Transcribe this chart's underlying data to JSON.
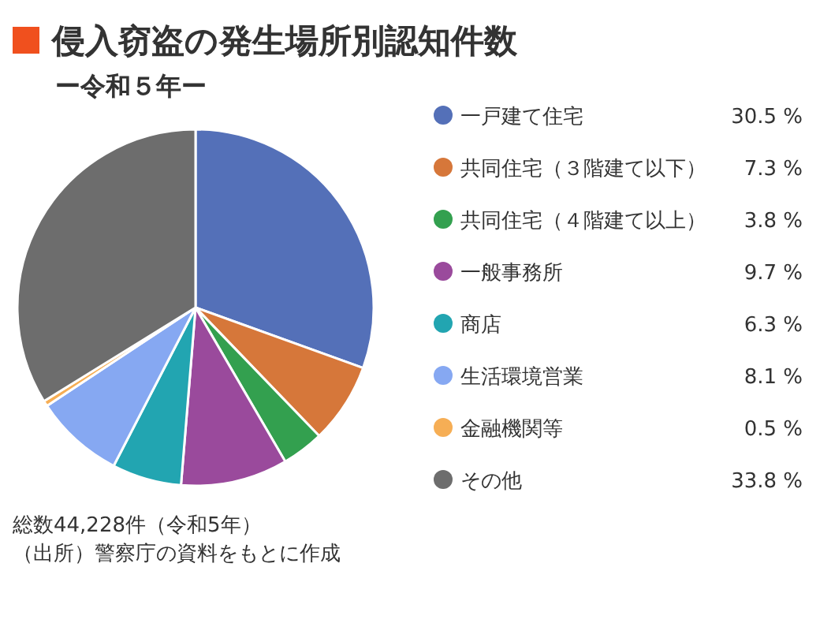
{
  "chart_data": {
    "type": "pie",
    "title": "侵入窃盗の発生場所別認知件数",
    "subtitle": "ー令和５年ー",
    "categories": [
      "一戸建て住宅",
      "共同住宅（３階建て以下）",
      "共同住宅（４階建て以上）",
      "一般事務所",
      "商店",
      "生活環境営業",
      "金融機関等",
      "その他"
    ],
    "values": [
      30.5,
      7.3,
      3.8,
      9.7,
      6.3,
      8.1,
      0.5,
      33.8
    ],
    "value_labels": [
      "30.5 %",
      "7.3 %",
      "3.8 %",
      "9.7 %",
      "6.3 %",
      "8.1 %",
      "0.5 %",
      "33.8 %"
    ],
    "colors": [
      "#5470b8",
      "#d6773a",
      "#33a04f",
      "#9a4a9c",
      "#22a5b1",
      "#86a8f2",
      "#f6ae55",
      "#6d6d6d"
    ],
    "legend": "right",
    "annotations": [
      "総数44,228件（令和5年）",
      "（出所）警察庁の資料をもとに作成"
    ]
  }
}
